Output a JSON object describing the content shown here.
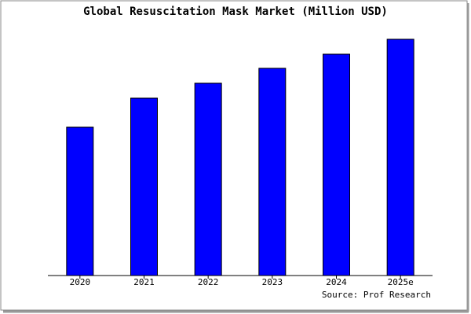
{
  "chart_data": {
    "type": "bar",
    "title": "Global Resuscitation Mask Market (Million USD)",
    "categories": [
      "2020",
      "2021",
      "2022",
      "2023",
      "2024",
      "2025e"
    ],
    "values": [
      189,
      226,
      245,
      264,
      282,
      301
    ],
    "color": "#0000ff",
    "ylim": [
      0,
      303
    ],
    "source": "Source: Prof Research"
  }
}
